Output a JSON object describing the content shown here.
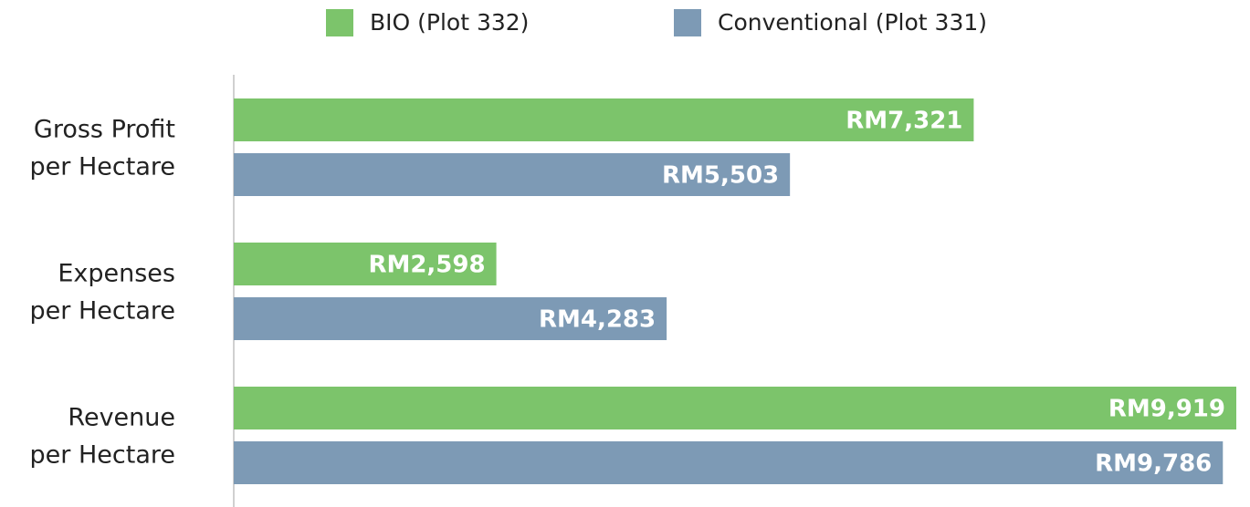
{
  "chart_data": {
    "type": "hbar",
    "categories": [
      [
        "Gross Profit",
        "per Hectare"
      ],
      [
        "Expenses",
        "per Hectare"
      ],
      [
        "Revenue",
        "per Hectare"
      ]
    ],
    "series": [
      {
        "name": "BIO (Plot 332)",
        "color": "#7cc46b",
        "values": [
          7321,
          2598,
          9919
        ],
        "value_labels": [
          "RM7,321",
          "RM2,598",
          "RM9,919"
        ]
      },
      {
        "name": "Conventional (Plot 331)",
        "color": "#7d9ab5",
        "values": [
          5503,
          4283,
          9786
        ],
        "value_labels": [
          "RM5,503",
          "RM4,283",
          "RM9,786"
        ]
      }
    ],
    "legend": "top"
  }
}
